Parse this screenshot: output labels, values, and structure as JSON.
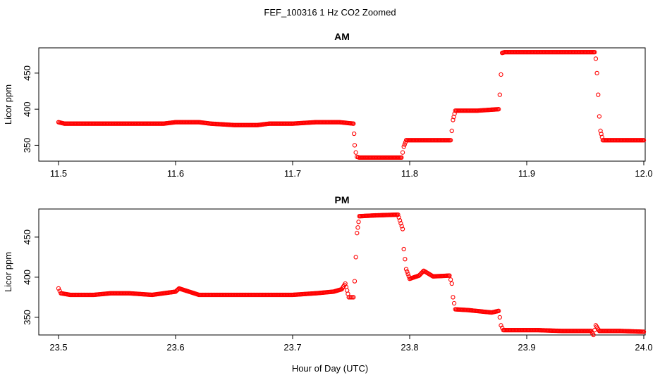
{
  "figure": {
    "title": "FEF_100316  1 Hz CO2 Zoomed",
    "xlabel": "Hour of Day (UTC)"
  },
  "chart_data": [
    {
      "type": "scatter",
      "title": "AM",
      "ylabel": "Licor ppm",
      "xlim": [
        11.5,
        12.0
      ],
      "ylim": [
        328,
        485
      ],
      "xticks": [
        "11.5",
        "11.6",
        "11.7",
        "11.8",
        "11.9",
        "12.0"
      ],
      "xtick_values": [
        11.5,
        11.6,
        11.7,
        11.8,
        11.9,
        12.0
      ],
      "yticks": [
        "350",
        "400",
        "450"
      ],
      "ytick_values": [
        350,
        400,
        450
      ],
      "marker_color": "#ff0000",
      "x": [
        11.5,
        11.505,
        11.52,
        11.56,
        11.59,
        11.6,
        11.62,
        11.63,
        11.65,
        11.67,
        11.68,
        11.7,
        11.72,
        11.74,
        11.752,
        11.7525,
        11.753,
        11.754,
        11.755,
        11.757,
        11.775,
        11.793,
        11.794,
        11.795,
        11.797,
        11.815,
        11.835,
        11.836,
        11.837,
        11.839,
        11.858,
        11.876,
        11.877,
        11.878,
        11.879,
        11.881,
        11.92,
        11.958,
        11.959,
        11.96,
        11.961,
        11.962,
        11.963,
        11.965,
        11.98,
        12.0
      ],
      "y": [
        382,
        380,
        380,
        380,
        380,
        382,
        382,
        380,
        378,
        378,
        380,
        380,
        382,
        382,
        380,
        366,
        350,
        340,
        334,
        333,
        333,
        333,
        340,
        348,
        357,
        357,
        357,
        370,
        385,
        398,
        398,
        400,
        420,
        448,
        478,
        479,
        479,
        479,
        470,
        450,
        420,
        390,
        370,
        357,
        357,
        357
      ]
    },
    {
      "type": "scatter",
      "title": "PM",
      "ylabel": "Licor ppm",
      "xlim": [
        23.5,
        24.0
      ],
      "ylim": [
        328,
        485
      ],
      "xticks": [
        "23.5",
        "23.6",
        "23.7",
        "23.8",
        "23.9",
        "24.0"
      ],
      "xtick_values": [
        23.5,
        23.6,
        23.7,
        23.8,
        23.9,
        24.0
      ],
      "yticks": [
        "350",
        "400",
        "450"
      ],
      "ytick_values": [
        350,
        400,
        450
      ],
      "marker_color": "#ff0000",
      "x": [
        23.5,
        23.502,
        23.51,
        23.53,
        23.545,
        23.56,
        23.58,
        23.6,
        23.603,
        23.62,
        23.66,
        23.7,
        23.72,
        23.735,
        23.742,
        23.745,
        23.748,
        23.75,
        23.752,
        23.753,
        23.754,
        23.755,
        23.757,
        23.77,
        23.79,
        23.794,
        23.795,
        23.797,
        23.8,
        23.808,
        23.812,
        23.82,
        23.834,
        23.836,
        23.837,
        23.839,
        23.85,
        23.87,
        23.876,
        23.877,
        23.878,
        23.88,
        23.91,
        23.93,
        23.955,
        23.957,
        23.959,
        23.962,
        23.98,
        24.0
      ],
      "y": [
        386,
        380,
        378,
        378,
        380,
        380,
        378,
        382,
        386,
        378,
        378,
        378,
        380,
        382,
        385,
        392,
        375,
        375,
        375,
        395,
        425,
        455,
        476,
        477,
        478,
        460,
        435,
        410,
        398,
        402,
        408,
        401,
        402,
        392,
        375,
        360,
        359,
        356,
        358,
        350,
        340,
        334,
        334,
        333,
        333,
        328,
        340,
        333,
        333,
        332
      ]
    }
  ]
}
